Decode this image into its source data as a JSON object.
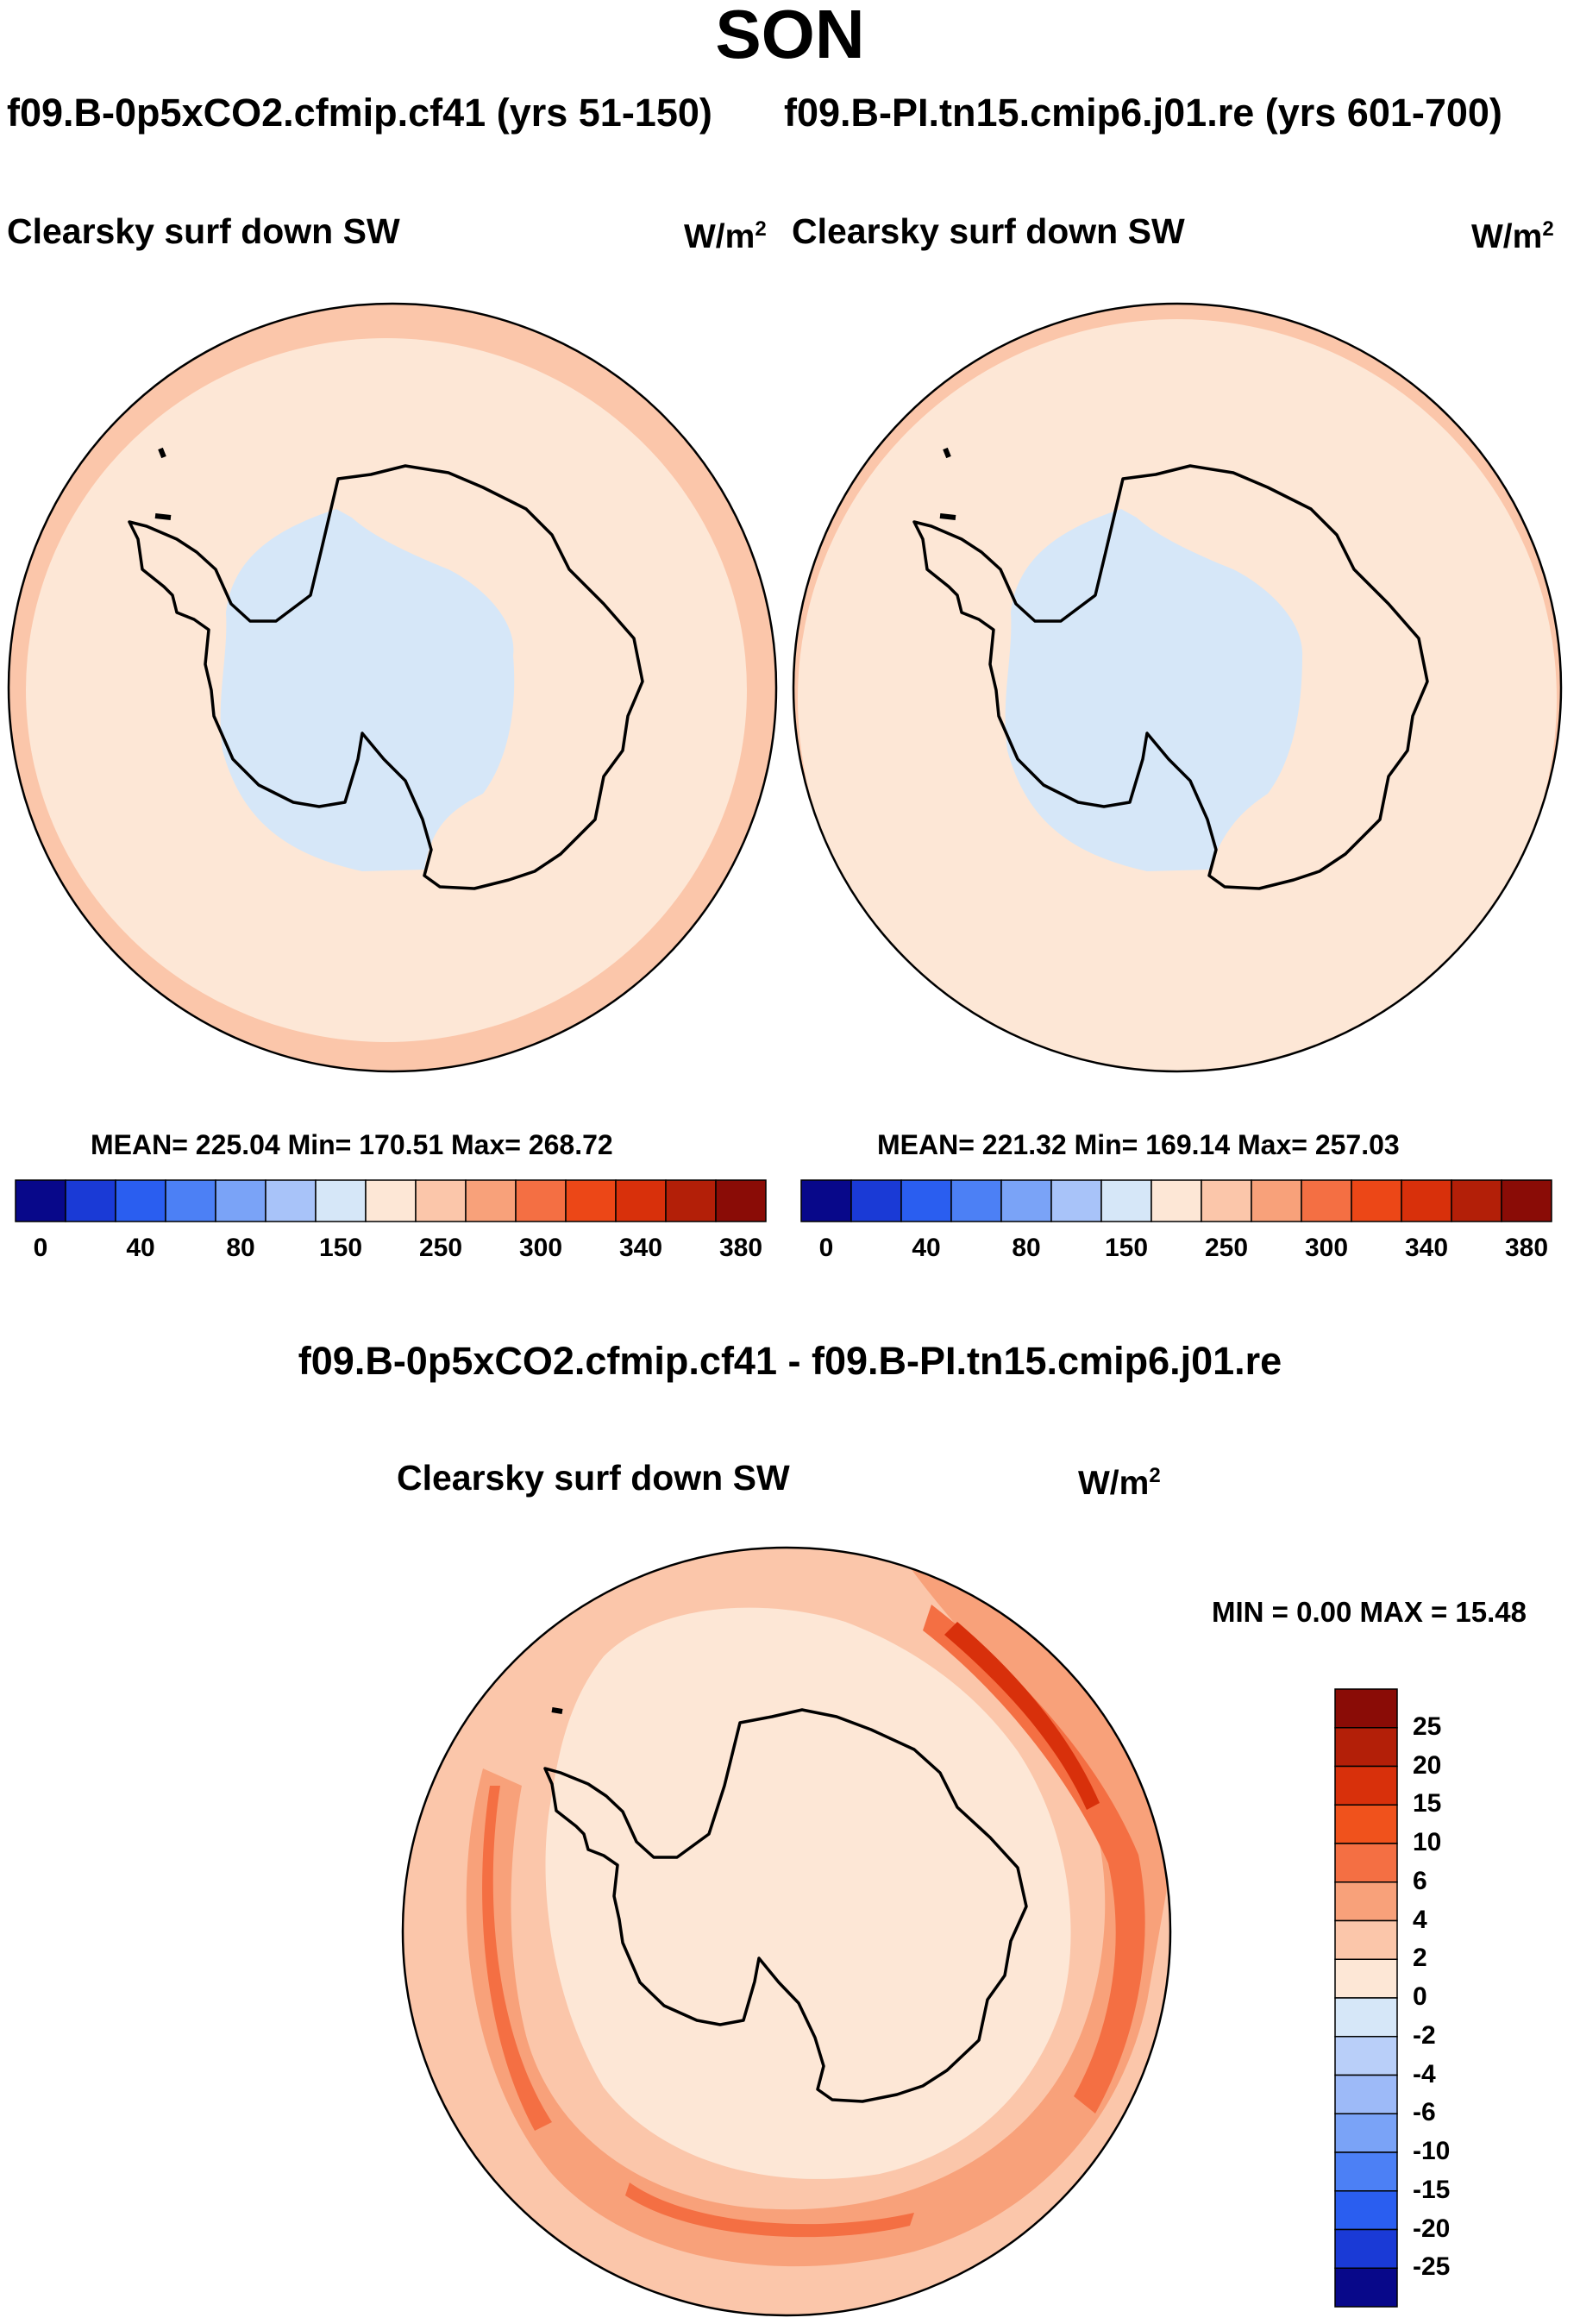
{
  "figure": {
    "season": "SON",
    "run_a": "f09.B-0p5xCO2.cfmip.cf41 (yrs 51-150)",
    "run_b": "f09.B-PI.tn15.cmip6.j01.re (yrs 601-700)",
    "diff_title": "f09.B-0p5xCO2.cfmip.cf41 - f09.B-PI.tn15.cmip6.j01.re"
  },
  "panels": {
    "a": {
      "variable": "Clearsky surf down SW",
      "unit_base": "W/m",
      "unit_exp": "2",
      "stats": "MEAN= 225.04  Min= 170.51  Max= 268.72",
      "mean": 225.04,
      "min": 170.51,
      "max": 268.72
    },
    "b": {
      "variable": "Clearsky surf down SW",
      "unit_base": "W/m",
      "unit_exp": "2",
      "stats": "MEAN= 221.32  Min= 169.14  Max= 257.03",
      "mean": 221.32,
      "min": 169.14,
      "max": 257.03
    },
    "diff": {
      "variable": "Clearsky surf down SW",
      "unit_base": "W/m",
      "unit_exp": "2",
      "minmax": "MIN =   0.00 MAX =  15.48",
      "min": 0.0,
      "max": 15.48
    }
  },
  "colorbar_abs": {
    "colors": [
      "#08088a",
      "#1a3ad6",
      "#2a5ef0",
      "#4c80f5",
      "#7aa3f7",
      "#a8c3f9",
      "#d6e7f8",
      "#fde7d6",
      "#fbc6aa",
      "#f8a17a",
      "#f46f43",
      "#ec4717",
      "#d8300b",
      "#b31f08",
      "#8a0c06"
    ],
    "tick_labels": [
      "0",
      "40",
      "80",
      "150",
      "250",
      "300",
      "340",
      "380"
    ]
  },
  "colorbar_diff": {
    "colors": [
      "#8a0c06",
      "#b31f08",
      "#d8300b",
      "#f0521c",
      "#f46f43",
      "#f8a17a",
      "#fbc6aa",
      "#fde7d6",
      "#d6e7f8",
      "#b9cff9",
      "#9dbaf8",
      "#7aa3f7",
      "#4c80f5",
      "#2a5ef0",
      "#1a3ad6",
      "#08088a"
    ],
    "labels": [
      "25",
      "20",
      "15",
      "10",
      "6",
      "4",
      "2",
      "0",
      "-2",
      "-4",
      "-6",
      "-10",
      "-15",
      "-20",
      "-25"
    ]
  }
}
